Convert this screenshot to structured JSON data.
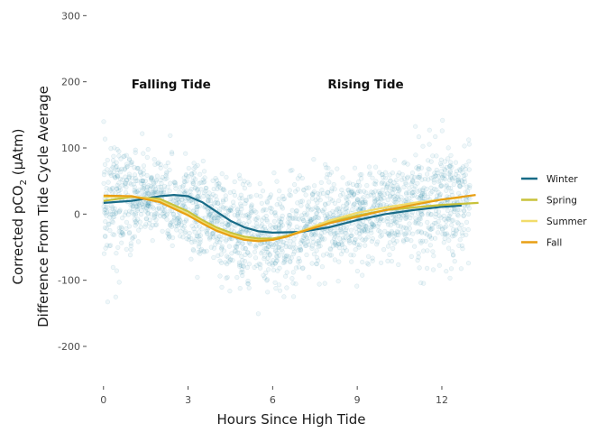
{
  "chart_data": {
    "type": "scatter",
    "xlabel": "Hours Since High Tide",
    "ylabel_line1_prefix": "Corrected pCO",
    "ylabel_line1_sub": "2",
    "ylabel_line1_suffix": " (µAtm)",
    "ylabel_line2": "Difference From Tide Cycle Average",
    "xlim": [
      -0.6,
      13.6
    ],
    "ylim": [
      -260,
      310
    ],
    "x_ticks": [
      0,
      3,
      6,
      9,
      12
    ],
    "x_tick_labels": [
      "0",
      "3",
      "6",
      "9",
      "12"
    ],
    "y_ticks": [
      300,
      200,
      100,
      0,
      -100,
      -200
    ],
    "y_tick_labels": [
      "300",
      "200",
      "100",
      "0",
      "-100",
      "-200"
    ],
    "grid": false,
    "legend_position": "right",
    "annotations": [
      {
        "text": "Falling Tide",
        "x": 2.4,
        "y": 197
      },
      {
        "text": "Rising Tide",
        "x": 9.3,
        "y": 197
      }
    ],
    "scatter_color": "#2b8aa8",
    "scatter_description_points": {
      "x_range": [
        0,
        13
      ],
      "mean_by_hour": [
        [
          0,
          20
        ],
        [
          2,
          25
        ],
        [
          4,
          -15
        ],
        [
          5,
          -35
        ],
        [
          6,
          -38
        ],
        [
          8,
          -10
        ],
        [
          10,
          5
        ],
        [
          12,
          15
        ],
        [
          13,
          18
        ]
      ],
      "spread_sd": 40
    },
    "series": [
      {
        "name": "Winter",
        "color": "#176b87",
        "x": [
          0,
          1,
          2,
          2.5,
          3,
          3.5,
          4,
          4.5,
          5,
          5.5,
          6,
          7,
          8,
          9,
          10,
          11,
          12,
          12.7
        ],
        "y": [
          17,
          20,
          27,
          29,
          27,
          18,
          4,
          -10,
          -20,
          -26,
          -28,
          -27,
          -20,
          -9,
          0,
          6,
          11,
          13
        ]
      },
      {
        "name": "Spring",
        "color": "#c8c23a",
        "x": [
          0,
          1,
          2,
          3,
          3.5,
          4,
          4.5,
          5,
          5.5,
          6,
          6.5,
          7,
          8,
          9,
          10,
          11,
          12,
          13.3
        ],
        "y": [
          20,
          26,
          23,
          4,
          -9,
          -20,
          -28,
          -34,
          -37,
          -37,
          -33,
          -26,
          -12,
          -2,
          6,
          10,
          14,
          17
        ]
      },
      {
        "name": "Summer",
        "color": "#f2dc6a",
        "x": [
          0,
          1,
          2,
          3,
          3.5,
          4,
          4.5,
          5,
          5.5,
          6,
          6.5,
          7,
          8,
          9,
          10,
          11,
          12,
          12.7
        ],
        "y": [
          26,
          27,
          20,
          0,
          -12,
          -23,
          -31,
          -37,
          -40,
          -39,
          -34,
          -26,
          -10,
          2,
          10,
          17,
          22,
          25
        ]
      },
      {
        "name": "Fall",
        "color": "#e89f14",
        "x": [
          0,
          1,
          2,
          3,
          3.5,
          4,
          4.5,
          5,
          5.5,
          6,
          6.5,
          7,
          8,
          9,
          10,
          11,
          12,
          13.2
        ],
        "y": [
          28,
          27,
          18,
          -2,
          -14,
          -25,
          -33,
          -39,
          -41,
          -39,
          -34,
          -27,
          -14,
          -4,
          6,
          14,
          22,
          29
        ]
      }
    ]
  }
}
